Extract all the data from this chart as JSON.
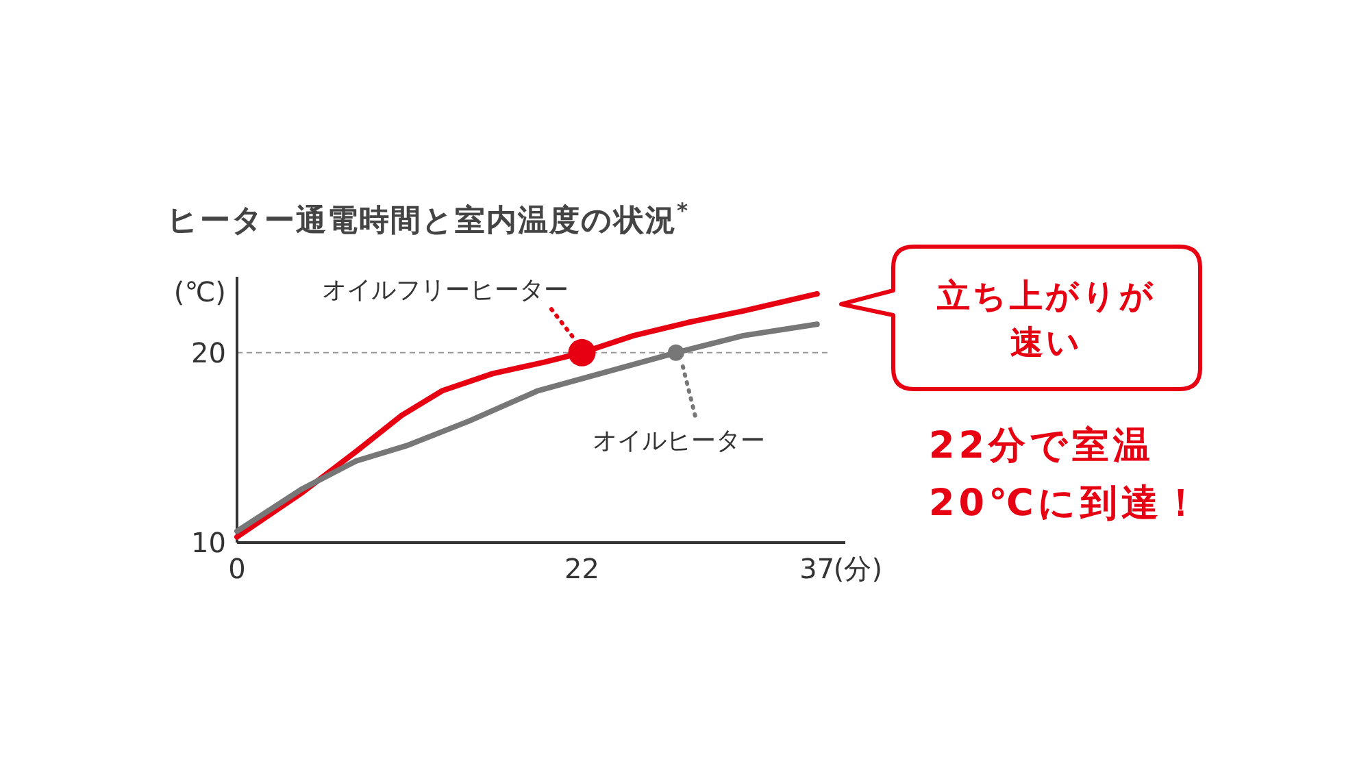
{
  "chart_data": {
    "type": "line",
    "title": "ヒーター通電時間と室内温度の状況$^{*}$",
    "xlabel": "(分)",
    "ylabel": "(℃)",
    "xlim": [
      0,
      38.8
    ],
    "ylim": [
      10,
      24
    ],
    "xticks": [
      0,
      22,
      37
    ],
    "yticks": [
      10,
      20
    ],
    "grid": false,
    "line_style": "solid",
    "series": [
      {
        "color": "#e60012",
        "x": [
          0,
          4.1,
          7.6,
          10.5,
          13.1,
          16.3,
          19.6,
          22,
          25.3,
          28.8,
          32.3,
          37
        ],
        "values": [
          10.3,
          12.6,
          14.8,
          16.7,
          18.0,
          18.9,
          19.5,
          20,
          20.9,
          21.6,
          22.2,
          23.1
        ]
      },
      {
        "color": "#777777",
        "x": [
          0,
          4.1,
          7.6,
          10.8,
          14.8,
          19.2,
          23.6,
          28,
          32.3,
          37
        ],
        "values": [
          10.6,
          12.8,
          14.3,
          15.1,
          16.4,
          18.0,
          19.0,
          20,
          20.9,
          21.5
        ]
      },
      {
        "type": "scatter",
        "name": "オイルフリーヒーター",
        "color": "#e60012",
        "x": [
          22
        ],
        "values": [
          20
        ]
      },
      {
        "type": "scatter",
        "name": "オイルヒーター",
        "color": "#777777",
        "x": [
          28
        ],
        "values": [
          20
        ]
      }
    ],
    "ref_lines": [
      {
        "axis": "y",
        "value": 20,
        "color": "#999999",
        "line_style": "dashed"
      }
    ],
    "annotations": [
      "立ち上がりが",
      "速い",
      "22分で室温",
      "20℃に到達！"
    ]
  }
}
